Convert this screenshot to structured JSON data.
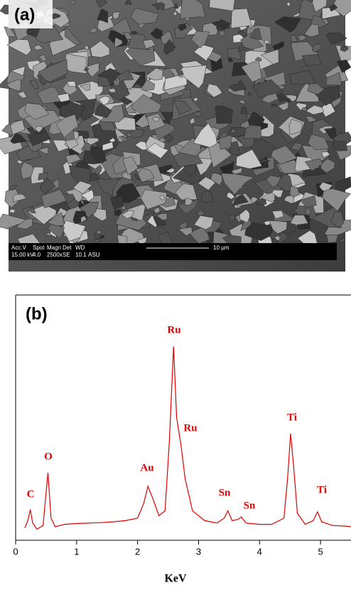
{
  "panel_a": {
    "label": "(a)",
    "databar": {
      "headers": [
        "Acc.V",
        "Spot",
        "Magn",
        "Det",
        "WD"
      ],
      "values": [
        "15.00 kV",
        "4.0",
        "2500x",
        "SE",
        "10.1",
        "ASU"
      ],
      "scale": "10 μm"
    }
  },
  "chart_data": {
    "type": "line",
    "panel_label": "(b)",
    "x_label": "KeV",
    "color": "#e00000",
    "xlim": [
      0,
      5.5
    ],
    "xticks": [
      0,
      1,
      2,
      3,
      4,
      5
    ],
    "ylim": [
      0,
      100
    ],
    "x": [
      0.15,
      0.2,
      0.24,
      0.28,
      0.35,
      0.45,
      0.53,
      0.58,
      0.65,
      0.8,
      1.0,
      1.2,
      1.4,
      1.6,
      1.8,
      2.0,
      2.1,
      2.17,
      2.25,
      2.35,
      2.45,
      2.52,
      2.59,
      2.64,
      2.71,
      2.78,
      2.9,
      3.1,
      3.3,
      3.42,
      3.48,
      3.55,
      3.65,
      3.7,
      3.78,
      4.0,
      4.2,
      4.4,
      4.46,
      4.51,
      4.56,
      4.62,
      4.75,
      4.88,
      4.95,
      5.02,
      5.2,
      5.4,
      5.5
    ],
    "values": [
      5,
      8,
      12.5,
      7,
      4.5,
      6,
      27.5,
      9,
      5.5,
      6.5,
      6.8,
      7,
      7.2,
      7.5,
      8,
      9,
      15,
      22,
      17,
      10,
      12,
      40,
      79,
      50,
      39,
      25,
      12,
      8,
      7,
      9,
      12,
      8,
      8.5,
      9.5,
      7,
      6.5,
      6.5,
      9,
      25,
      43.5,
      30,
      11,
      6.5,
      8,
      11.6,
      7.5,
      6,
      5.8,
      5.5
    ],
    "annotations": [
      "C",
      "O",
      "Au",
      "Ru",
      "Ru",
      "Sn",
      "Sn",
      "Ti",
      "Ti"
    ]
  }
}
